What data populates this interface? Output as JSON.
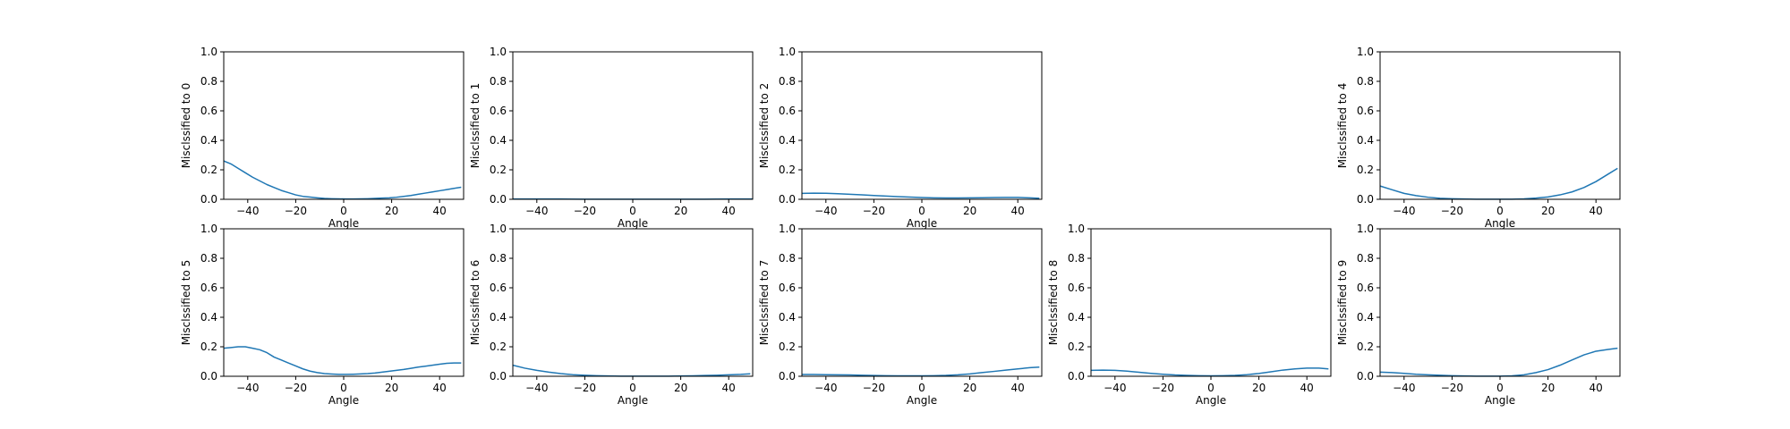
{
  "chart_data": [
    {
      "type": "line",
      "panel": 0,
      "xlabel": "Angle",
      "ylabel": "Misclssified to 0",
      "xlim": [
        -50,
        50
      ],
      "ylim": [
        0,
        1.0
      ],
      "xticks": [
        "−40",
        "−20",
        "0",
        "20",
        "40"
      ],
      "yticks": [
        "0.0",
        "0.2",
        "0.4",
        "0.6",
        "0.8",
        "1.0"
      ],
      "color": "#1f77b4",
      "x": [
        -50,
        -47,
        -44,
        -41,
        -38,
        -35,
        -32,
        -29,
        -26,
        -23,
        -20,
        -17,
        -14,
        -11,
        -8,
        -5,
        -2,
        1,
        4,
        7,
        10,
        13,
        16,
        19,
        22,
        25,
        28,
        31,
        34,
        37,
        40,
        43,
        46,
        49
      ],
      "y": [
        0.26,
        0.24,
        0.21,
        0.18,
        0.15,
        0.125,
        0.1,
        0.08,
        0.06,
        0.045,
        0.03,
        0.02,
        0.015,
        0.01,
        0.006,
        0.004,
        0.003,
        0.002,
        0.002,
        0.003,
        0.004,
        0.006,
        0.008,
        0.01,
        0.014,
        0.02,
        0.026,
        0.034,
        0.042,
        0.05,
        0.058,
        0.066,
        0.074,
        0.082
      ]
    },
    {
      "type": "line",
      "panel": 1,
      "xlabel": "Angle",
      "ylabel": "Misclssified to 1",
      "xlim": [
        -50,
        50
      ],
      "ylim": [
        0,
        1.0
      ],
      "xticks": [
        "−40",
        "−20",
        "0",
        "20",
        "40"
      ],
      "yticks": [
        "0.0",
        "0.2",
        "0.4",
        "0.6",
        "0.8",
        "1.0"
      ],
      "color": "#1f77b4",
      "x": [
        -50,
        -40,
        -30,
        -20,
        -10,
        0,
        10,
        20,
        30,
        40,
        50
      ],
      "y": [
        0.002,
        0.002,
        0.002,
        0.001,
        0.001,
        0.001,
        0.001,
        0.001,
        0.001,
        0.002,
        0.002
      ]
    },
    {
      "type": "line",
      "panel": 2,
      "xlabel": "Angle",
      "ylabel": "Misclssified to 2",
      "xlim": [
        -50,
        50
      ],
      "ylim": [
        0,
        1.0
      ],
      "xticks": [
        "−40",
        "−20",
        "0",
        "20",
        "40"
      ],
      "yticks": [
        "0.0",
        "0.2",
        "0.4",
        "0.6",
        "0.8",
        "1.0"
      ],
      "color": "#1f77b4",
      "x": [
        -50,
        -45,
        -40,
        -35,
        -30,
        -25,
        -20,
        -15,
        -10,
        -5,
        0,
        5,
        10,
        15,
        20,
        25,
        30,
        35,
        40,
        45,
        49
      ],
      "y": [
        0.04,
        0.042,
        0.041,
        0.038,
        0.034,
        0.03,
        0.026,
        0.022,
        0.018,
        0.015,
        0.012,
        0.01,
        0.009,
        0.009,
        0.01,
        0.011,
        0.012,
        0.013,
        0.013,
        0.01,
        0.007
      ]
    },
    {
      "type": "line",
      "panel": 4,
      "xlabel": "Angle",
      "ylabel": "Misclssified to 4",
      "xlim": [
        -50,
        50
      ],
      "ylim": [
        0,
        1.0
      ],
      "xticks": [
        "−40",
        "−20",
        "0",
        "20",
        "40"
      ],
      "yticks": [
        "0.0",
        "0.2",
        "0.4",
        "0.6",
        "0.8",
        "1.0"
      ],
      "color": "#1f77b4",
      "x": [
        -50,
        -45,
        -40,
        -35,
        -30,
        -25,
        -20,
        -15,
        -10,
        -5,
        0,
        5,
        10,
        15,
        20,
        25,
        30,
        35,
        40,
        45,
        49
      ],
      "y": [
        0.09,
        0.065,
        0.04,
        0.025,
        0.014,
        0.007,
        0.004,
        0.002,
        0.001,
        0.001,
        0.001,
        0.001,
        0.003,
        0.008,
        0.016,
        0.03,
        0.05,
        0.08,
        0.12,
        0.17,
        0.21
      ]
    },
    {
      "type": "line",
      "panel": 5,
      "xlabel": "Angle",
      "ylabel": "Misclssified to 5",
      "xlim": [
        -50,
        50
      ],
      "ylim": [
        0,
        1.0
      ],
      "xticks": [
        "−40",
        "−20",
        "0",
        "20",
        "40"
      ],
      "yticks": [
        "0.0",
        "0.2",
        "0.4",
        "0.6",
        "0.8",
        "1.0"
      ],
      "color": "#1f77b4",
      "x": [
        -50,
        -47,
        -44,
        -41,
        -38,
        -35,
        -32,
        -29,
        -26,
        -23,
        -20,
        -17,
        -14,
        -11,
        -8,
        -5,
        -2,
        1,
        4,
        7,
        10,
        13,
        16,
        19,
        22,
        25,
        28,
        31,
        34,
        37,
        40,
        43,
        46,
        49
      ],
      "y": [
        0.19,
        0.195,
        0.2,
        0.2,
        0.19,
        0.18,
        0.16,
        0.13,
        0.11,
        0.09,
        0.07,
        0.05,
        0.035,
        0.025,
        0.018,
        0.015,
        0.013,
        0.013,
        0.014,
        0.016,
        0.018,
        0.022,
        0.028,
        0.034,
        0.04,
        0.046,
        0.054,
        0.062,
        0.068,
        0.075,
        0.082,
        0.088,
        0.09,
        0.09
      ]
    },
    {
      "type": "line",
      "panel": 6,
      "xlabel": "Angle",
      "ylabel": "Misclssified to 6",
      "xlim": [
        -50,
        50
      ],
      "ylim": [
        0,
        1.0
      ],
      "xticks": [
        "−40",
        "−20",
        "0",
        "20",
        "40"
      ],
      "yticks": [
        "0.0",
        "0.2",
        "0.4",
        "0.6",
        "0.8",
        "1.0"
      ],
      "color": "#1f77b4",
      "x": [
        -50,
        -45,
        -40,
        -35,
        -30,
        -25,
        -20,
        -15,
        -10,
        -5,
        0,
        5,
        10,
        15,
        20,
        25,
        30,
        35,
        40,
        45,
        49
      ],
      "y": [
        0.075,
        0.055,
        0.04,
        0.028,
        0.018,
        0.011,
        0.007,
        0.004,
        0.002,
        0.001,
        0.001,
        0.001,
        0.001,
        0.001,
        0.002,
        0.003,
        0.005,
        0.007,
        0.01,
        0.013,
        0.017
      ]
    },
    {
      "type": "line",
      "panel": 7,
      "xlabel": "Angle",
      "ylabel": "Misclssified to 7",
      "xlim": [
        -50,
        50
      ],
      "ylim": [
        0,
        1.0
      ],
      "xticks": [
        "−40",
        "−20",
        "0",
        "20",
        "40"
      ],
      "yticks": [
        "0.0",
        "0.2",
        "0.4",
        "0.6",
        "0.8",
        "1.0"
      ],
      "color": "#1f77b4",
      "x": [
        -50,
        -45,
        -40,
        -35,
        -30,
        -25,
        -20,
        -15,
        -10,
        -5,
        0,
        5,
        10,
        15,
        20,
        25,
        30,
        35,
        40,
        45,
        49
      ],
      "y": [
        0.012,
        0.012,
        0.011,
        0.01,
        0.009,
        0.007,
        0.005,
        0.004,
        0.003,
        0.003,
        0.003,
        0.004,
        0.006,
        0.01,
        0.016,
        0.025,
        0.033,
        0.042,
        0.05,
        0.058,
        0.062
      ]
    },
    {
      "type": "line",
      "panel": 8,
      "xlabel": "Angle",
      "ylabel": "Misclssified to 8",
      "xlim": [
        -50,
        50
      ],
      "ylim": [
        0,
        1.0
      ],
      "xticks": [
        "−40",
        "−20",
        "0",
        "20",
        "40"
      ],
      "yticks": [
        "0.0",
        "0.2",
        "0.4",
        "0.6",
        "0.8",
        "1.0"
      ],
      "color": "#1f77b4",
      "x": [
        -50,
        -45,
        -40,
        -35,
        -30,
        -25,
        -20,
        -15,
        -10,
        -5,
        0,
        5,
        10,
        15,
        20,
        25,
        30,
        35,
        40,
        45,
        49
      ],
      "y": [
        0.04,
        0.042,
        0.04,
        0.035,
        0.027,
        0.02,
        0.014,
        0.009,
        0.006,
        0.004,
        0.003,
        0.004,
        0.006,
        0.011,
        0.019,
        0.03,
        0.042,
        0.05,
        0.055,
        0.055,
        0.05
      ]
    },
    {
      "type": "line",
      "panel": 9,
      "xlabel": "Angle",
      "ylabel": "Misclssified to 9",
      "xlim": [
        -50,
        50
      ],
      "ylim": [
        0,
        1.0
      ],
      "xticks": [
        "−40",
        "−20",
        "0",
        "20",
        "40"
      ],
      "yticks": [
        "0.0",
        "0.2",
        "0.4",
        "0.6",
        "0.8",
        "1.0"
      ],
      "color": "#1f77b4",
      "x": [
        -50,
        -45,
        -40,
        -35,
        -30,
        -25,
        -20,
        -15,
        -10,
        -5,
        0,
        5,
        10,
        15,
        20,
        25,
        30,
        35,
        40,
        45,
        49
      ],
      "y": [
        0.028,
        0.025,
        0.02,
        0.014,
        0.01,
        0.007,
        0.004,
        0.002,
        0.001,
        0.001,
        0.001,
        0.003,
        0.01,
        0.025,
        0.045,
        0.075,
        0.11,
        0.145,
        0.17,
        0.182,
        0.19
      ]
    }
  ]
}
